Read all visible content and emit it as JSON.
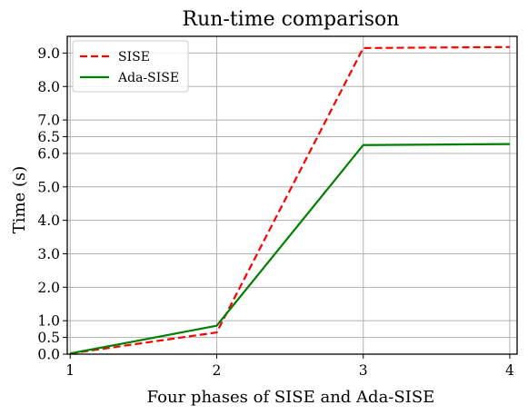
{
  "chart_data": {
    "type": "line",
    "title": "Run-time comparison",
    "xlabel": "Four phases of SISE and Ada-SISE",
    "ylabel": "Time (s)",
    "x": [
      1,
      2,
      3,
      4
    ],
    "xticks": [
      1,
      2,
      3,
      4
    ],
    "xtick_labels": [
      "1",
      "2",
      "3",
      "4"
    ],
    "yticks": [
      0.0,
      0.5,
      1.0,
      2.0,
      3.0,
      4.0,
      5.0,
      6.0,
      6.5,
      7.0,
      8.0,
      9.0
    ],
    "ytick_labels": [
      "0.0",
      "0.5",
      "1.0",
      "2.0",
      "3.0",
      "4.0",
      "5.0",
      "6.0",
      "6.5",
      "7.0",
      "8.0",
      "9.0"
    ],
    "xlim": [
      0.98,
      4.05
    ],
    "ylim": [
      0.0,
      9.5
    ],
    "grid": true,
    "legend": "top-left",
    "series": [
      {
        "name": "SISE",
        "values": [
          0.02,
          0.65,
          9.15,
          9.18
        ],
        "color": "#ff0000",
        "style": "dashed"
      },
      {
        "name": "Ada-SISE",
        "values": [
          0.02,
          0.85,
          6.25,
          6.28
        ],
        "color": "#008000",
        "style": "solid"
      }
    ]
  }
}
